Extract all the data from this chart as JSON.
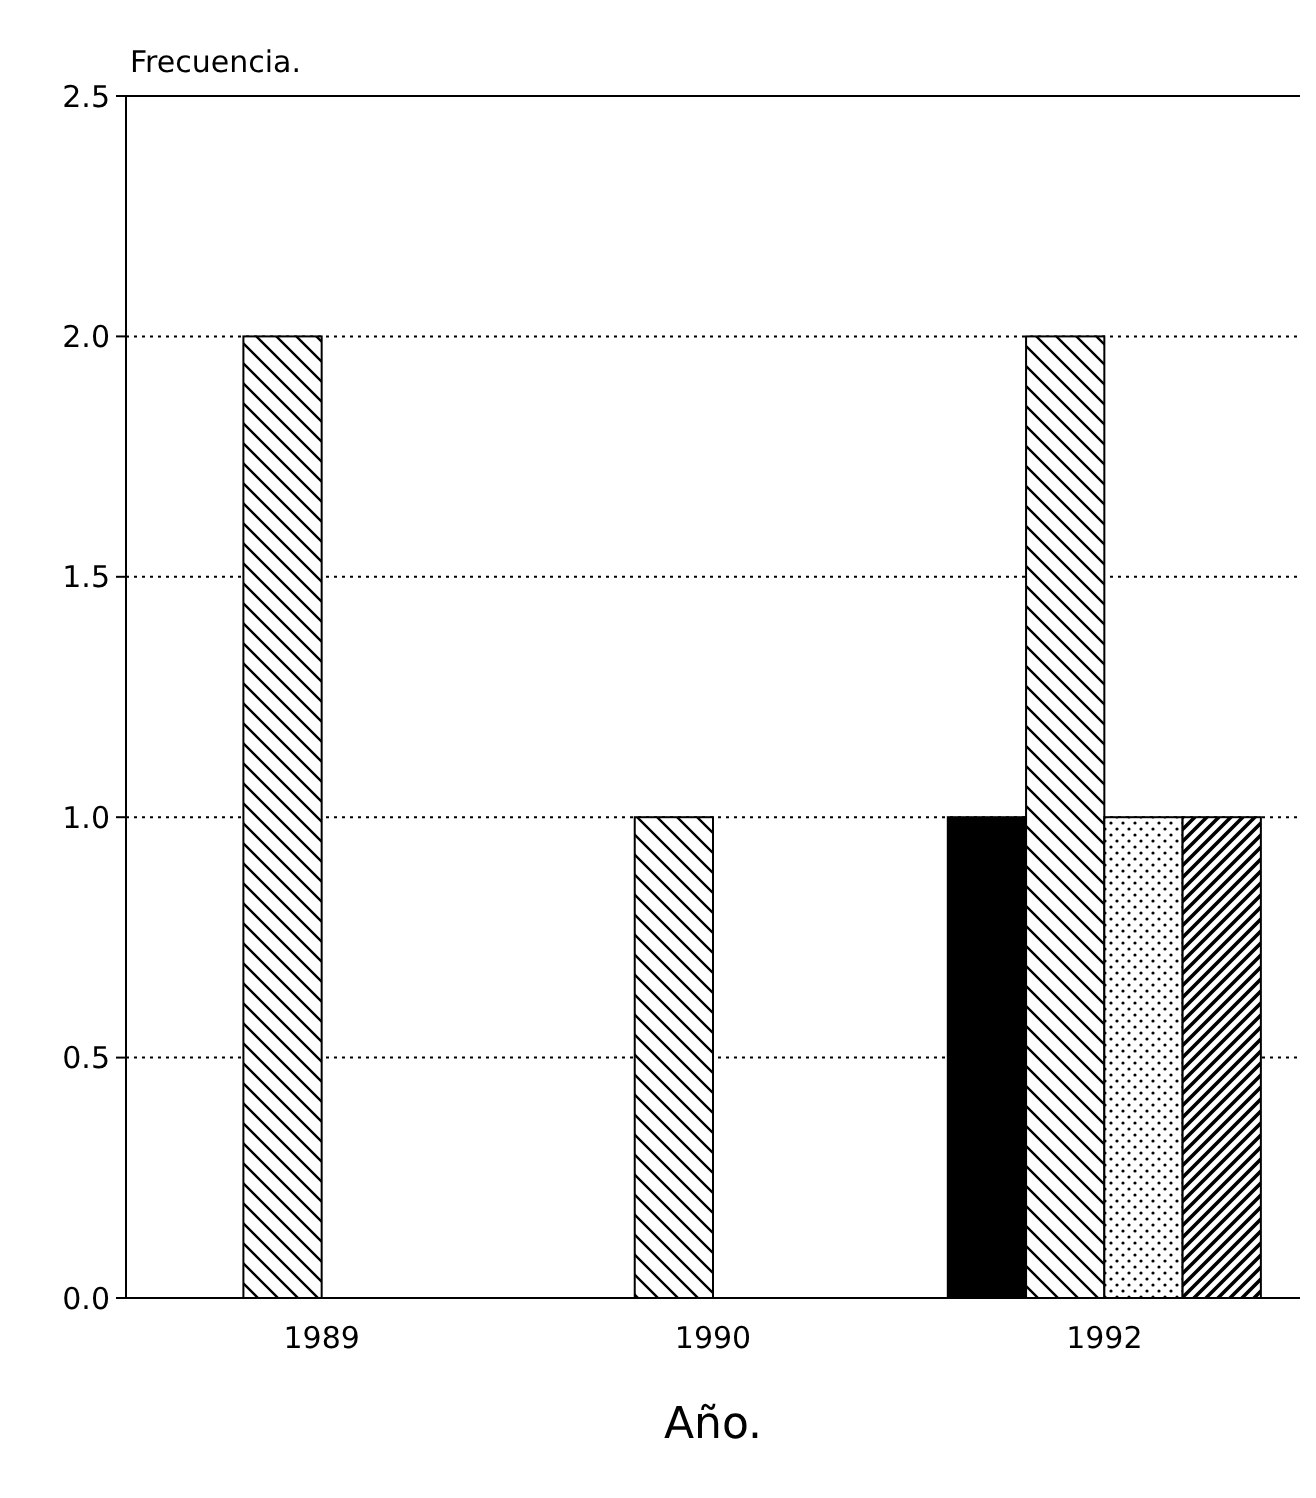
{
  "chart_data": {
    "type": "bar",
    "ylabel": "Frecuencia.",
    "xlabel": "Año.",
    "categories": [
      "1989",
      "1990",
      "1992"
    ],
    "series": [
      {
        "color": "#000000",
        "values": [
          null,
          null,
          1
        ]
      },
      {
        "color": "#000000",
        "values": [
          2,
          1,
          2
        ]
      },
      {
        "color": "#000000",
        "values": [
          null,
          null,
          1
        ]
      },
      {
        "color": "#000000",
        "values": [
          null,
          null,
          1
        ]
      }
    ],
    "ylim": [
      0,
      2.5
    ],
    "yticks": [
      {
        "value": 0,
        "label": "0.0"
      },
      {
        "value": 0.5,
        "label": "0.5"
      },
      {
        "value": 1,
        "label": "1.0"
      },
      {
        "value": 1.5,
        "label": "1.5"
      },
      {
        "value": 2,
        "label": "2.0"
      },
      {
        "value": 2.5,
        "label": "2.5"
      }
    ],
    "grid": "y"
  }
}
